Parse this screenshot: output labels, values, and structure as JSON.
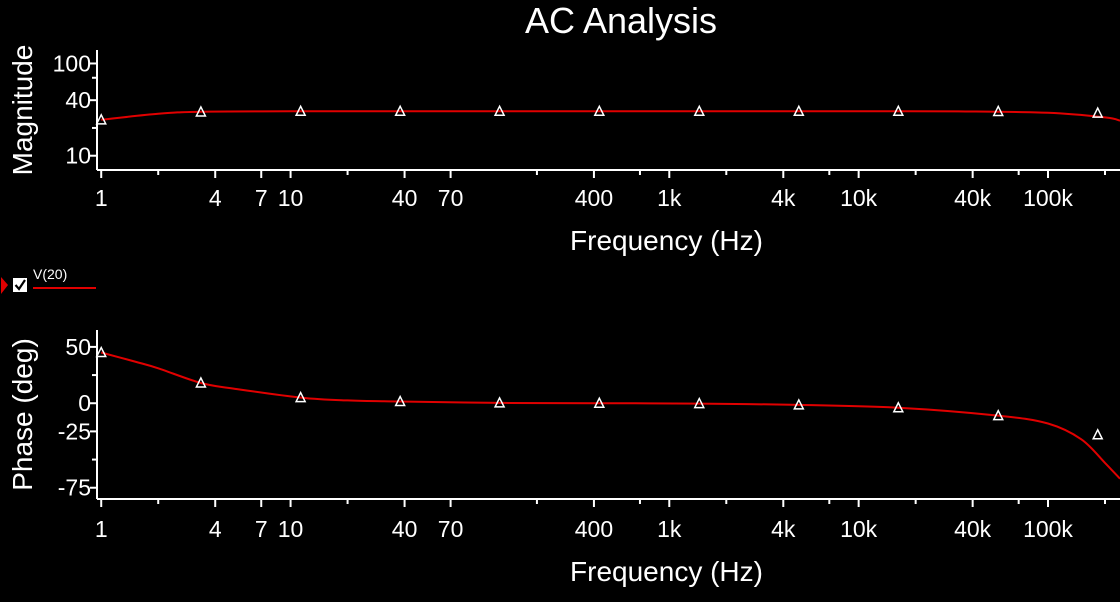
{
  "title": "AC Analysis",
  "legend": {
    "label": "V(20)",
    "checked": true,
    "color": "#e00000"
  },
  "colors": {
    "background": "#000000",
    "series": "#e00000",
    "axis": "#ffffff"
  },
  "chart_data": [
    {
      "type": "line",
      "title": "AC Analysis",
      "xlabel": "Frequency (Hz)",
      "ylabel": "Magnitude",
      "xscale": "log",
      "yscale": "log",
      "xlim": [
        0.95,
        240000
      ],
      "ylim": [
        7,
        140
      ],
      "x_ticks": [
        {
          "value": 1,
          "label": "1"
        },
        {
          "value": 4,
          "label": "4"
        },
        {
          "value": 7,
          "label": "7"
        },
        {
          "value": 10,
          "label": "10"
        },
        {
          "value": 40,
          "label": "40"
        },
        {
          "value": 70,
          "label": "70"
        },
        {
          "value": 400,
          "label": "400"
        },
        {
          "value": 1000,
          "label": "1k"
        },
        {
          "value": 4000,
          "label": "4k"
        },
        {
          "value": 10000,
          "label": "10k"
        },
        {
          "value": 40000,
          "label": "40k"
        },
        {
          "value": 100000,
          "label": "100k"
        }
      ],
      "x_minor_ticks": [
        2,
        20,
        200,
        700,
        2000,
        7000,
        20000,
        70000,
        200000
      ],
      "y_ticks": [
        {
          "value": 10,
          "label": "10"
        },
        {
          "value": 40,
          "label": "40"
        },
        {
          "value": 100,
          "label": "100"
        }
      ],
      "y_minor_ticks": [
        20,
        70
      ],
      "series": [
        {
          "name": "V(20)",
          "x": [
            1,
            2,
            3.36,
            10,
            40,
            100,
            336,
            1000,
            3360,
            10000,
            33600,
            100000,
            200000,
            240000
          ],
          "y": [
            24.5,
            28.5,
            30,
            30.3,
            30.3,
            30.3,
            30.3,
            30.3,
            30.3,
            30.3,
            30.2,
            29.2,
            26,
            24
          ]
        }
      ],
      "markers": {
        "x": [
          1,
          3.36,
          11.3,
          37.9,
          127,
          427,
          1440,
          4830,
          16200,
          54600,
          183000
        ],
        "y": [
          24.5,
          29.8,
          30.3,
          30.3,
          30.3,
          30.3,
          30.3,
          30.3,
          30.3,
          30.2,
          29
        ]
      },
      "grid": false
    },
    {
      "type": "line",
      "xlabel": "Frequency (Hz)",
      "ylabel": "Phase (deg)",
      "xscale": "log",
      "yscale": "linear",
      "xlim": [
        0.95,
        240000
      ],
      "ylim": [
        -85,
        65
      ],
      "x_ticks": [
        {
          "value": 1,
          "label": "1"
        },
        {
          "value": 4,
          "label": "4"
        },
        {
          "value": 7,
          "label": "7"
        },
        {
          "value": 10,
          "label": "10"
        },
        {
          "value": 40,
          "label": "40"
        },
        {
          "value": 70,
          "label": "70"
        },
        {
          "value": 400,
          "label": "400"
        },
        {
          "value": 1000,
          "label": "1k"
        },
        {
          "value": 4000,
          "label": "4k"
        },
        {
          "value": 10000,
          "label": "10k"
        },
        {
          "value": 40000,
          "label": "40k"
        },
        {
          "value": 100000,
          "label": "100k"
        }
      ],
      "x_minor_ticks": [
        2,
        20,
        200,
        700,
        2000,
        7000,
        20000,
        70000,
        200000
      ],
      "y_ticks": [
        {
          "value": 50,
          "label": "50"
        },
        {
          "value": 0,
          "label": "0"
        },
        {
          "value": -25,
          "label": "-25"
        },
        {
          "value": -75,
          "label": "-75"
        }
      ],
      "y_minor_ticks": [
        25,
        -50
      ],
      "series": [
        {
          "name": "V(20)",
          "x": [
            1,
            1.5,
            2,
            3.36,
            5,
            11.3,
            20,
            37.9,
            127,
            427,
            1440,
            4830,
            16200,
            54600,
            100000,
            150000,
            200000,
            240000
          ],
          "y": [
            45,
            37,
            31,
            18,
            13,
            5,
            2.5,
            1.5,
            0.3,
            0,
            -0.3,
            -1.5,
            -4,
            -11,
            -18,
            -32,
            -53,
            -67
          ]
        }
      ],
      "markers": {
        "x": [
          1,
          3.36,
          11.3,
          37.9,
          127,
          427,
          1440,
          4830,
          16200,
          54600,
          183000
        ],
        "y": [
          45,
          18,
          5,
          1.5,
          0.3,
          0,
          -0.3,
          -1.5,
          -4,
          -11,
          -28
        ]
      },
      "grid": false
    }
  ]
}
